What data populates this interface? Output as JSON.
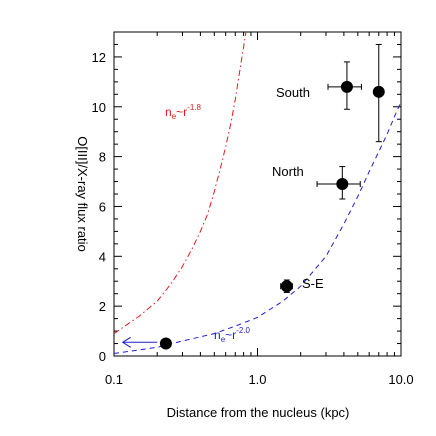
{
  "chart_data": {
    "type": "scatter",
    "xscale": "log",
    "xlim": [
      0.1,
      10.0
    ],
    "ylim": [
      0,
      13
    ],
    "xlabel": "Distance from the nucleus (kpc)",
    "ylabel": "O[III]/X-ray flux ratio",
    "x_tick_labels": [
      "0.1",
      "1.0",
      "10.0"
    ],
    "x_tick_values": [
      0.1,
      1.0,
      10.0
    ],
    "y_tick_labels": [
      "0",
      "2",
      "4",
      "6",
      "8",
      "10",
      "12"
    ],
    "y_tick_values": [
      0,
      2,
      4,
      6,
      8,
      10,
      12
    ],
    "grid": false,
    "points": [
      {
        "x": 0.23,
        "y": 0.5,
        "xerr": null,
        "yerr": null,
        "label": ""
      },
      {
        "x": 1.6,
        "y": 2.8,
        "xerr": [
          1.45,
          1.75
        ],
        "yerr": [
          2.55,
          3.05
        ],
        "label": "S-E"
      },
      {
        "x": 3.9,
        "y": 6.9,
        "xerr": [
          2.6,
          5.2
        ],
        "yerr": [
          6.3,
          7.6
        ],
        "label": "North"
      },
      {
        "x": 4.2,
        "y": 10.8,
        "xerr": [
          3.1,
          5.3
        ],
        "yerr": [
          9.9,
          11.8
        ],
        "label": "South"
      },
      {
        "x": 7.0,
        "y": 10.6,
        "xerr": null,
        "yerr": [
          8.6,
          12.5
        ],
        "label": ""
      }
    ],
    "curves": [
      {
        "name": "n_e~r^-1.8",
        "color": "#e31a1c",
        "style": "dash-dot",
        "x": [
          0.1,
          0.15,
          0.2,
          0.25,
          0.3,
          0.35,
          0.4,
          0.45,
          0.5,
          0.55,
          0.6,
          0.65,
          0.7,
          0.75,
          0.8,
          0.83
        ],
        "y": [
          0.9,
          1.6,
          2.2,
          2.9,
          3.6,
          4.3,
          5.0,
          5.7,
          6.6,
          7.5,
          8.4,
          9.3,
          10.3,
          11.4,
          12.4,
          13.0
        ]
      },
      {
        "name": "n_e~r^-2.0",
        "color": "#1f1fd0",
        "style": "dash",
        "x": [
          0.1,
          0.2,
          0.3,
          0.5,
          0.7,
          1.0,
          1.5,
          2.0,
          3.0,
          4.0,
          5.0,
          6.0,
          7.0,
          8.0,
          9.0,
          10.0
        ],
        "y": [
          0.1,
          0.35,
          0.6,
          0.9,
          1.2,
          1.55,
          2.2,
          2.8,
          4.0,
          5.3,
          6.4,
          7.4,
          8.2,
          8.9,
          9.6,
          10.2
        ]
      }
    ],
    "arrow_color": "#1f1fd0",
    "annotations": {
      "south": "South",
      "north": "North",
      "se": "S-E",
      "red_curve_base": "n",
      "red_curve_sub": "e",
      "red_curve_mid": "~r",
      "red_curve_sup": "-1.8",
      "blue_curve_base": "n",
      "blue_curve_sub": "e",
      "blue_curve_mid": "~r",
      "blue_curve_sup": "-2.0"
    }
  }
}
